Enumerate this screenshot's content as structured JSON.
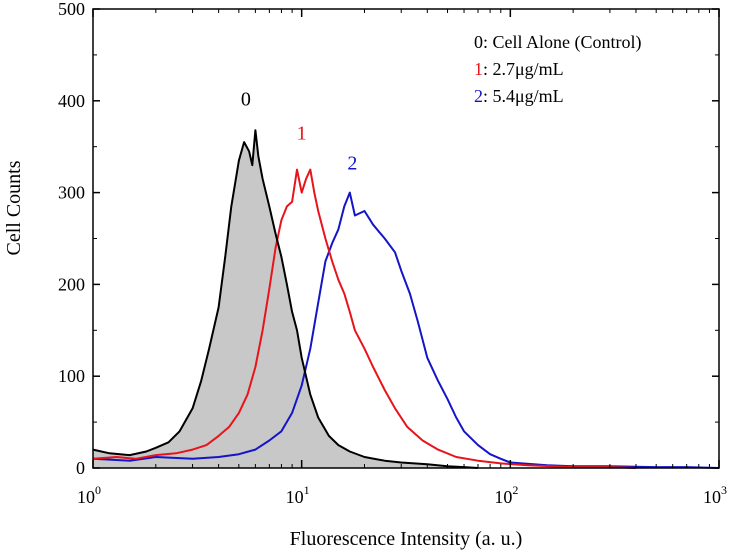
{
  "chart_data": {
    "type": "line",
    "title": "",
    "xlabel": "Fluorescence Intensity (a. u.)",
    "ylabel": "Cell Counts",
    "x_scale": "log",
    "xlim": [
      1,
      1000
    ],
    "ylim": [
      0,
      500
    ],
    "x_ticks": [
      {
        "value": 1,
        "base": "10",
        "exp": "0"
      },
      {
        "value": 10,
        "base": "10",
        "exp": "1"
      },
      {
        "value": 100,
        "base": "10",
        "exp": "2"
      },
      {
        "value": 1000,
        "base": "10",
        "exp": "3"
      }
    ],
    "y_ticks": [
      {
        "value": 0,
        "label": "0"
      },
      {
        "value": 100,
        "label": "100"
      },
      {
        "value": 200,
        "label": "200"
      },
      {
        "value": 300,
        "label": "300"
      },
      {
        "value": 400,
        "label": "400"
      },
      {
        "value": 500,
        "label": "500"
      }
    ],
    "grid": false,
    "legend": {
      "placement": "top-right",
      "entries": [
        {
          "key": "0",
          "text": ": Cell Alone (Control)",
          "color": "#000000"
        },
        {
          "key": "1",
          "text": ": 2.7μg/mL",
          "color": "#e8141b"
        },
        {
          "key": "2",
          "text": ": 5.4μg/mL",
          "color": "#1414c8"
        }
      ]
    },
    "series": [
      {
        "key": "0",
        "color": "#000000",
        "fill": "#c8c8c8",
        "peak_label": {
          "text": "0",
          "x": 5.4,
          "y": 395
        },
        "x": [
          1.0,
          1.2,
          1.5,
          1.8,
          2.0,
          2.3,
          2.6,
          3.0,
          3.3,
          3.6,
          4.0,
          4.3,
          4.6,
          5.0,
          5.3,
          5.6,
          5.8,
          6.0,
          6.2,
          6.5,
          7.0,
          7.5,
          8.0,
          8.5,
          9.0,
          9.5,
          10.0,
          11.0,
          12.0,
          13.5,
          15.0,
          17.0,
          20.0,
          25.0,
          30.0,
          40.0,
          50.0,
          60.0,
          70.0
        ],
        "y": [
          20,
          16,
          14,
          18,
          22,
          28,
          40,
          65,
          95,
          130,
          175,
          230,
          285,
          335,
          355,
          345,
          330,
          368,
          340,
          315,
          285,
          255,
          230,
          200,
          170,
          150,
          120,
          80,
          55,
          35,
          25,
          18,
          12,
          8,
          6,
          4,
          2,
          1,
          0
        ]
      },
      {
        "key": "1",
        "color": "#e8141b",
        "peak_label": {
          "text": "1",
          "x": 10.0,
          "y": 358
        },
        "x": [
          1.0,
          1.3,
          1.6,
          2.0,
          2.5,
          3.0,
          3.5,
          4.0,
          4.5,
          5.0,
          5.5,
          6.0,
          6.5,
          7.0,
          7.5,
          8.0,
          8.5,
          9.0,
          9.5,
          10.0,
          10.5,
          11.0,
          11.5,
          12.0,
          13.0,
          14.0,
          15.0,
          16.0,
          17.0,
          18.0,
          20.0,
          22.0,
          25.0,
          28.0,
          32.0,
          38.0,
          45.0,
          55.0,
          70.0,
          90.0,
          120.0,
          160.0,
          200.0,
          300.0,
          400.0
        ],
        "y": [
          10,
          12,
          10,
          14,
          16,
          20,
          25,
          35,
          45,
          60,
          80,
          110,
          150,
          195,
          240,
          270,
          285,
          290,
          325,
          300,
          315,
          325,
          300,
          280,
          250,
          225,
          205,
          190,
          170,
          150,
          130,
          110,
          85,
          65,
          45,
          30,
          20,
          12,
          8,
          5,
          3,
          2,
          1,
          1,
          0
        ]
      },
      {
        "key": "2",
        "color": "#1414c8",
        "peak_label": {
          "text": "2",
          "x": 17.5,
          "y": 325
        },
        "x": [
          1.0,
          1.5,
          2.0,
          3.0,
          4.0,
          5.0,
          6.0,
          7.0,
          8.0,
          9.0,
          10.0,
          11.0,
          12.0,
          13.0,
          14.0,
          15.0,
          16.0,
          17.0,
          18.0,
          20.0,
          22.0,
          25.0,
          28.0,
          30.0,
          33.0,
          36.0,
          40.0,
          45.0,
          50.0,
          55.0,
          60.0,
          70.0,
          80.0,
          90.0,
          100.0,
          150.0,
          200.0,
          300.0,
          500.0,
          700.0,
          1000.0
        ],
        "y": [
          10,
          8,
          12,
          10,
          12,
          15,
          20,
          30,
          40,
          60,
          90,
          130,
          180,
          225,
          245,
          260,
          285,
          300,
          275,
          280,
          265,
          250,
          235,
          215,
          190,
          160,
          120,
          95,
          75,
          55,
          40,
          25,
          15,
          10,
          6,
          3,
          2,
          2,
          1,
          1,
          0
        ]
      }
    ]
  }
}
